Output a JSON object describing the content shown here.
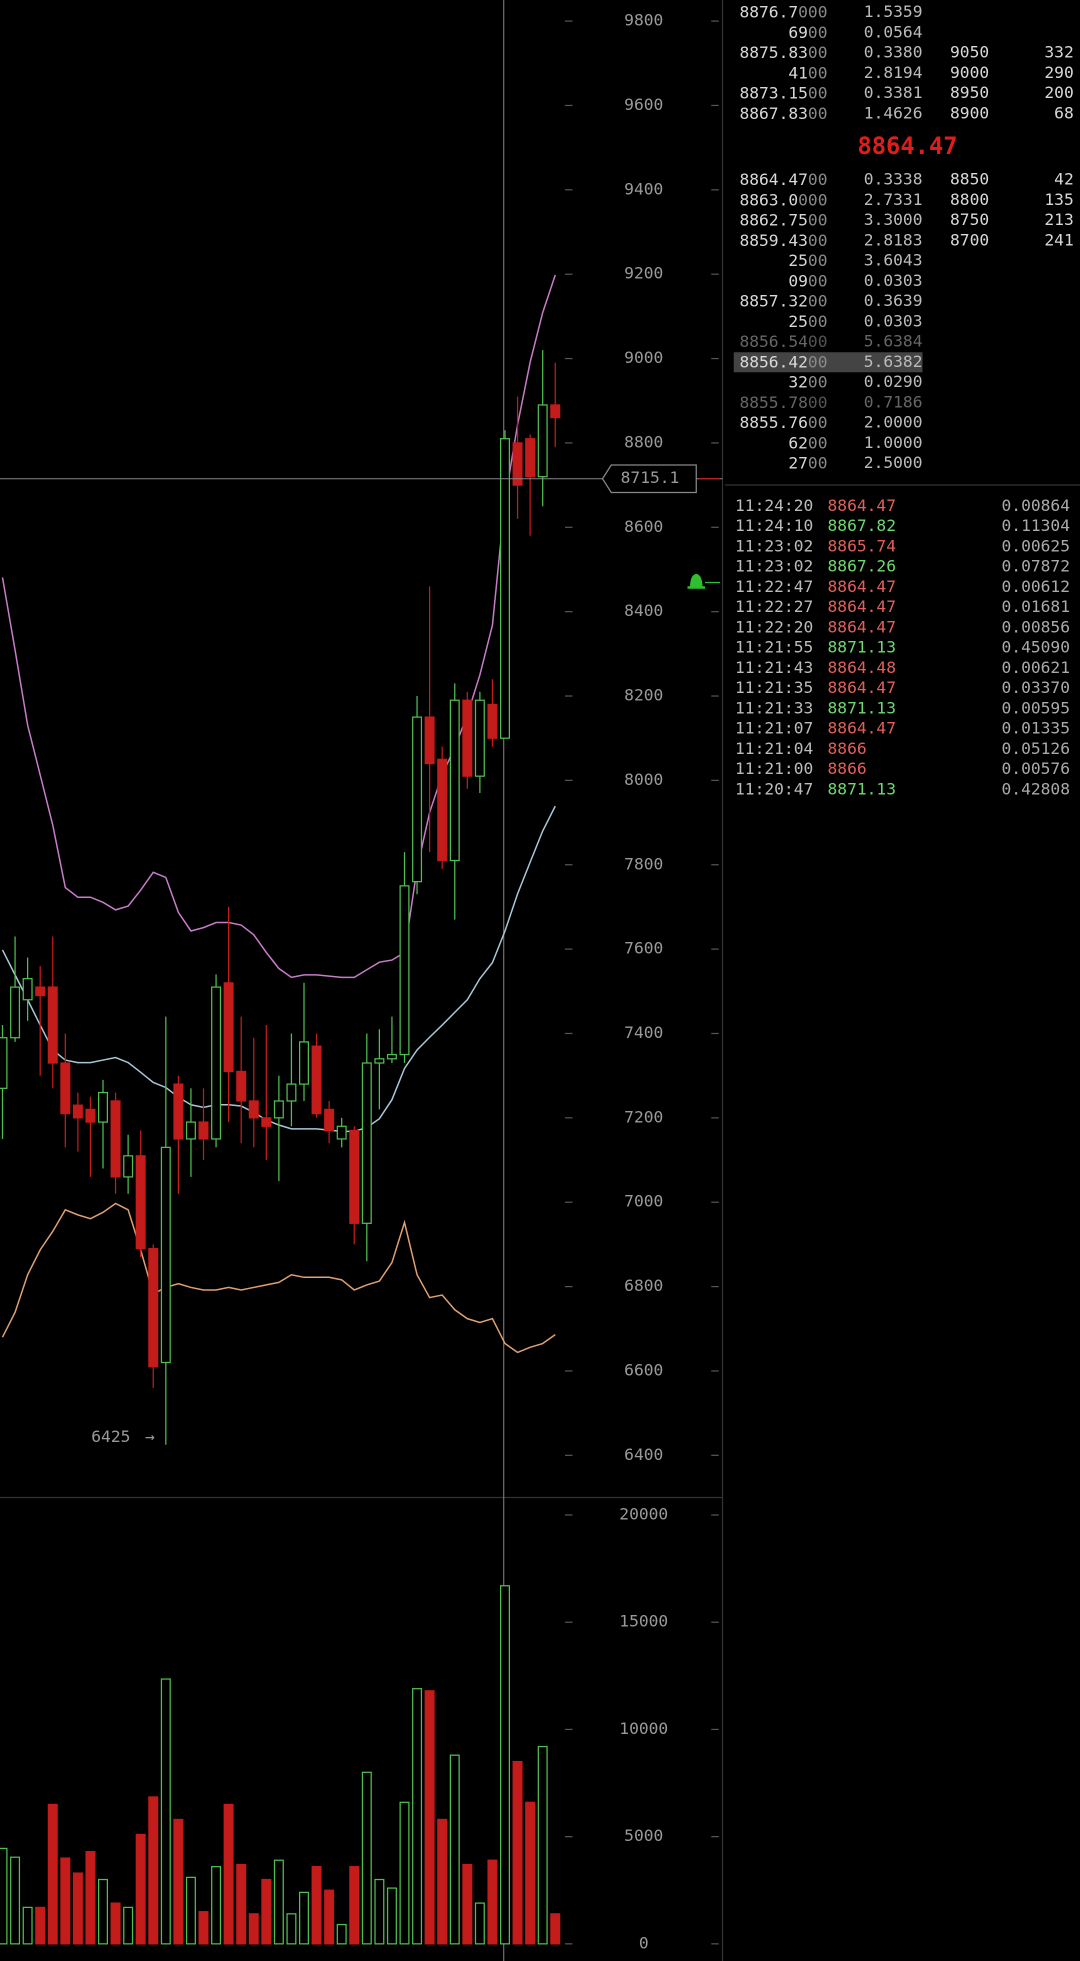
{
  "chart_data": [
    {
      "type": "candlestick",
      "open": [
        7270,
        7390,
        7480,
        7510,
        7510,
        7330,
        7230,
        7220,
        7190,
        7240,
        7060,
        7110,
        6890,
        6620,
        7280,
        7150,
        7190,
        7150,
        7520,
        7310,
        7240,
        7200,
        7200,
        7240,
        7280,
        7370,
        7220,
        7150,
        7170,
        6950,
        7330,
        7340,
        7350,
        7760,
        8150,
        8050,
        7810,
        8190,
        8010,
        8180,
        8100,
        8800,
        8810,
        8720,
        8890
      ],
      "high": [
        7420,
        7630,
        7580,
        7560,
        7630,
        7400,
        7260,
        7250,
        7290,
        7260,
        7160,
        7170,
        6900,
        7440,
        7300,
        7270,
        7270,
        7540,
        7700,
        7440,
        7390,
        7420,
        7300,
        7400,
        7520,
        7400,
        7240,
        7200,
        7180,
        7400,
        7410,
        7440,
        7830,
        8200,
        8460,
        8080,
        8230,
        8210,
        8210,
        8240,
        8830,
        8910,
        8820,
        9020,
        8990
      ],
      "low": [
        7150,
        7380,
        7430,
        7300,
        7270,
        7130,
        7120,
        7060,
        7080,
        7020,
        7020,
        6870,
        6560,
        6425,
        7020,
        7060,
        7100,
        7130,
        7190,
        7140,
        7130,
        7100,
        7050,
        7180,
        7240,
        7200,
        7140,
        7130,
        6900,
        6860,
        7220,
        7330,
        7330,
        7730,
        7830,
        7790,
        7670,
        7980,
        7970,
        8080,
        8100,
        8620,
        8580,
        8650,
        8790
      ],
      "close": [
        7390,
        7510,
        7530,
        7490,
        7330,
        7210,
        7200,
        7190,
        7260,
        7060,
        7110,
        6890,
        6610,
        7130,
        7150,
        7190,
        7150,
        7510,
        7310,
        7240,
        7200,
        7180,
        7240,
        7280,
        7380,
        7210,
        7170,
        7180,
        6950,
        7330,
        7340,
        7350,
        7750,
        8150,
        8040,
        7810,
        8190,
        8010,
        8190,
        8100,
        8810,
        8700,
        8720,
        8890,
        8860
      ],
      "up_color": "#4fbf4f",
      "down_color": "#c41b1b",
      "bands": [
        {
          "color": "#c77dc7",
          "values": [
            8481,
            8309,
            8131,
            8013,
            7894,
            7746,
            7723,
            7723,
            7711,
            7693,
            7702,
            7740,
            7782,
            7770,
            7687,
            7643,
            7651,
            7663,
            7663,
            7657,
            7634,
            7592,
            7554,
            7533,
            7539,
            7539,
            7536,
            7533,
            7533,
            7551,
            7569,
            7574,
            7592,
            7791,
            7924,
            8013,
            8078,
            8155,
            8250,
            8368,
            8665,
            8843,
            8991,
            9109,
            9198
          ]
        },
        {
          "color": "#a8c8d8",
          "values": [
            7598,
            7539,
            7480,
            7420,
            7361,
            7337,
            7331,
            7331,
            7337,
            7343,
            7331,
            7308,
            7284,
            7272,
            7249,
            7231,
            7225,
            7231,
            7231,
            7228,
            7213,
            7195,
            7183,
            7174,
            7174,
            7174,
            7171,
            7168,
            7168,
            7177,
            7198,
            7243,
            7317,
            7361,
            7391,
            7420,
            7450,
            7480,
            7530,
            7568,
            7643,
            7731,
            7806,
            7880,
            7939
          ]
        },
        {
          "color": "#e0a070",
          "values": [
            6680,
            6739,
            6828,
            6887,
            6931,
            6982,
            6970,
            6961,
            6976,
            6997,
            6982,
            6887,
            6783,
            6798,
            6807,
            6798,
            6792,
            6792,
            6798,
            6792,
            6798,
            6804,
            6810,
            6828,
            6822,
            6822,
            6822,
            6816,
            6792,
            6804,
            6813,
            6857,
            6952,
            6828,
            6774,
            6780,
            6745,
            6724,
            6715,
            6724,
            6665,
            6644,
            6656,
            6665,
            6686
          ]
        }
      ],
      "ylim": [
        6300,
        9850
      ],
      "yticks": [
        6400,
        6600,
        6800,
        7000,
        7200,
        7400,
        7600,
        7800,
        8000,
        8200,
        8400,
        8600,
        8800,
        9000,
        9200,
        9400,
        9600,
        9800
      ],
      "crosshair": 8715.1,
      "low_marker": 6425
    },
    {
      "type": "bar",
      "values": [
        4450,
        4040,
        1700,
        1700,
        6500,
        4000,
        3300,
        4300,
        3000,
        1900,
        1700,
        5100,
        6850,
        12350,
        5800,
        3100,
        1500,
        3600,
        6500,
        3700,
        1400,
        3000,
        3900,
        1400,
        2400,
        3600,
        2500,
        900,
        3600,
        8000,
        3000,
        2600,
        6600,
        11900,
        11800,
        5800,
        8800,
        3700,
        1900,
        3900,
        16700,
        8500,
        6600,
        9200,
        1400
      ],
      "ylim": [
        -800,
        20700
      ],
      "yticks": [
        0,
        5000,
        10000,
        15000,
        20000
      ]
    }
  ],
  "order_book": {
    "asks": [
      {
        "price": [
          "8876.7",
          "000"
        ],
        "amount": "1.5359"
      },
      {
        "price": [
          "69",
          "00"
        ],
        "amount": "0.0564"
      },
      {
        "price": [
          "8875.83",
          "00"
        ],
        "amount": "0.3380",
        "level": [
          "9050",
          "332"
        ]
      },
      {
        "price": [
          "41",
          "00"
        ],
        "amount": "2.8194",
        "level": [
          "9000",
          "290"
        ]
      },
      {
        "price": [
          "8873.15",
          "00"
        ],
        "amount": "0.3381",
        "level": [
          "8950",
          "200"
        ]
      },
      {
        "price": [
          "8867.83",
          "00"
        ],
        "amount": "1.4626",
        "level": [
          "8900",
          "68"
        ]
      }
    ],
    "last_price": "8864.47",
    "bids": [
      {
        "price": [
          "8864.47",
          "00"
        ],
        "amount": "0.3338",
        "level": [
          "8850",
          "42"
        ]
      },
      {
        "price": [
          "8863.0",
          "000"
        ],
        "amount": "2.7331",
        "level": [
          "8800",
          "135"
        ]
      },
      {
        "price": [
          "8862.75",
          "00"
        ],
        "amount": "3.3000",
        "level": [
          "8750",
          "213"
        ]
      },
      {
        "price": [
          "8859.43",
          "00"
        ],
        "amount": "2.8183",
        "level": [
          "8700",
          "241"
        ]
      },
      {
        "price": [
          "25",
          "00"
        ],
        "amount": "3.6043"
      },
      {
        "price": [
          "09",
          "00"
        ],
        "amount": "0.0303"
      },
      {
        "price": [
          "8857.32",
          "00"
        ],
        "amount": "0.3639"
      },
      {
        "price": [
          "25",
          "00"
        ],
        "amount": "0.0303"
      },
      {
        "price": [
          "8856.54",
          "00"
        ],
        "amount": "5.6384",
        "state": "faded"
      },
      {
        "price": [
          "8856.42",
          "00"
        ],
        "amount": "5.6382",
        "state": "selected"
      },
      {
        "price": [
          "32",
          "00"
        ],
        "amount": "0.0290"
      },
      {
        "price": [
          "8855.78",
          "00"
        ],
        "amount": "0.7186",
        "state": "faded"
      },
      {
        "price": [
          "8855.76",
          "00"
        ],
        "amount": "2.0000"
      },
      {
        "price": [
          "62",
          "00"
        ],
        "amount": "1.0000"
      },
      {
        "price": [
          "27",
          "00"
        ],
        "amount": "2.5000"
      }
    ]
  },
  "trades": [
    {
      "time": "11:24:20",
      "price": "8864.47",
      "amount": "0.00864",
      "color": "#e0605a"
    },
    {
      "time": "11:24:10",
      "price": "8867.82",
      "amount": "0.11304",
      "color": "#6fd86f"
    },
    {
      "time": "11:23:02",
      "price": "8865.74",
      "amount": "0.00625",
      "color": "#e0605a"
    },
    {
      "time": "11:23:02",
      "price": "8867.26",
      "amount": "0.07872",
      "color": "#6fd86f"
    },
    {
      "time": "11:22:47",
      "price": "8864.47",
      "amount": "0.00612",
      "color": "#e0605a"
    },
    {
      "time": "11:22:27",
      "price": "8864.47",
      "amount": "0.01681",
      "color": "#e0605a"
    },
    {
      "time": "11:22:20",
      "price": "8864.47",
      "amount": "0.00856",
      "color": "#e0605a"
    },
    {
      "time": "11:21:55",
      "price": "8871.13",
      "amount": "0.45090",
      "color": "#6fd86f"
    },
    {
      "time": "11:21:43",
      "price": "8864.48",
      "amount": "0.00621",
      "color": "#e0605a"
    },
    {
      "time": "11:21:35",
      "price": "8864.47",
      "amount": "0.03370",
      "color": "#e0605a"
    },
    {
      "time": "11:21:33",
      "price": "8871.13",
      "amount": "0.00595",
      "color": "#6fd86f"
    },
    {
      "time": "11:21:07",
      "price": "8864.47",
      "amount": "0.01335",
      "color": "#e0605a"
    },
    {
      "time": "11:21:04",
      "price": "8866",
      "amount": "0.05126",
      "color": "#e0605a"
    },
    {
      "time": "11:21:00",
      "price": "8866",
      "amount": "0.00576",
      "color": "#e0605a"
    },
    {
      "time": "11:20:47",
      "price": "8871.13",
      "amount": "0.42808",
      "color": "#6fd86f"
    }
  ]
}
